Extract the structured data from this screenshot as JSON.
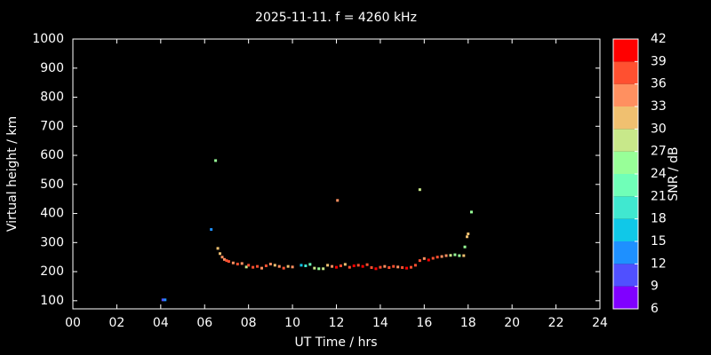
{
  "chart_data": {
    "type": "scatter",
    "title": "2025-11-11. f = 4260 kHz",
    "xlabel": "UT Time / hrs",
    "ylabel": "Virtual height / km",
    "colorbar_label": "SNR / dB",
    "xlim": [
      0,
      24
    ],
    "ylim": [
      72,
      1000
    ],
    "xticks": [
      {
        "value": 0,
        "label": "00"
      },
      {
        "value": 2,
        "label": "02"
      },
      {
        "value": 4,
        "label": "04"
      },
      {
        "value": 6,
        "label": "06"
      },
      {
        "value": 8,
        "label": "08"
      },
      {
        "value": 10,
        "label": "10"
      },
      {
        "value": 12,
        "label": "12"
      },
      {
        "value": 14,
        "label": "14"
      },
      {
        "value": 16,
        "label": "16"
      },
      {
        "value": 18,
        "label": "18"
      },
      {
        "value": 20,
        "label": "20"
      },
      {
        "value": 22,
        "label": "22"
      },
      {
        "value": 24,
        "label": "24"
      }
    ],
    "yticks": [
      100,
      200,
      300,
      400,
      500,
      600,
      700,
      800,
      900,
      1000
    ],
    "cticks": [
      6,
      9,
      12,
      15,
      18,
      21,
      24,
      27,
      30,
      33,
      36,
      39,
      42
    ],
    "colors": [
      "#8000ff",
      "#5050ff",
      "#1e90ff",
      "#10c8e8",
      "#40e8d0",
      "#70ffb8",
      "#98ff98",
      "#c8e88a",
      "#f0c070",
      "#ff9060",
      "#ff5030",
      "#ff0000"
    ],
    "x": [
      4.1,
      4.2,
      6.3,
      6.5,
      6.6,
      12.05,
      15.8,
      18.15,
      18.0,
      17.95,
      17.85,
      6.7,
      6.8,
      6.9,
      7.0,
      7.1,
      7.3,
      7.5,
      7.7,
      7.9,
      8.0,
      8.2,
      8.4,
      8.6,
      8.8,
      9.0,
      9.2,
      9.4,
      9.6,
      9.8,
      10.0,
      10.4,
      10.6,
      10.8,
      11.0,
      11.2,
      11.4,
      11.6,
      11.8,
      12.0,
      12.2,
      12.4,
      12.6,
      12.8,
      13.0,
      13.2,
      13.4,
      13.6,
      13.8,
      14.0,
      14.2,
      14.4,
      14.6,
      14.8,
      15.0,
      15.2,
      15.4,
      15.6,
      15.8,
      16.0,
      16.2,
      16.4,
      16.6,
      16.8,
      17.0,
      17.2,
      17.4,
      17.6,
      17.8
    ],
    "values": [
      103,
      103,
      345,
      582,
      280,
      445,
      482,
      405,
      330,
      320,
      285,
      262,
      250,
      242,
      238,
      235,
      230,
      226,
      228,
      216,
      222,
      215,
      218,
      212,
      220,
      226,
      222,
      218,
      212,
      218,
      216,
      222,
      220,
      225,
      212,
      210,
      210,
      222,
      218,
      215,
      220,
      225,
      215,
      220,
      222,
      218,
      224,
      214,
      210,
      215,
      218,
      214,
      218,
      216,
      214,
      212,
      215,
      222,
      238,
      245,
      240,
      246,
      250,
      252,
      255,
      256,
      258,
      255,
      255
    ],
    "snr": [
      10,
      12,
      12,
      24,
      30,
      33,
      27,
      24,
      30,
      30,
      24,
      30,
      33,
      33,
      36,
      36,
      33,
      36,
      33,
      27,
      36,
      36,
      36,
      33,
      36,
      33,
      30,
      33,
      36,
      30,
      33,
      15,
      18,
      21,
      27,
      24,
      27,
      30,
      33,
      39,
      36,
      30,
      36,
      39,
      36,
      39,
      36,
      36,
      39,
      36,
      33,
      36,
      36,
      33,
      36,
      39,
      36,
      36,
      36,
      33,
      39,
      36,
      36,
      33,
      33,
      27,
      24,
      24,
      30
    ]
  }
}
